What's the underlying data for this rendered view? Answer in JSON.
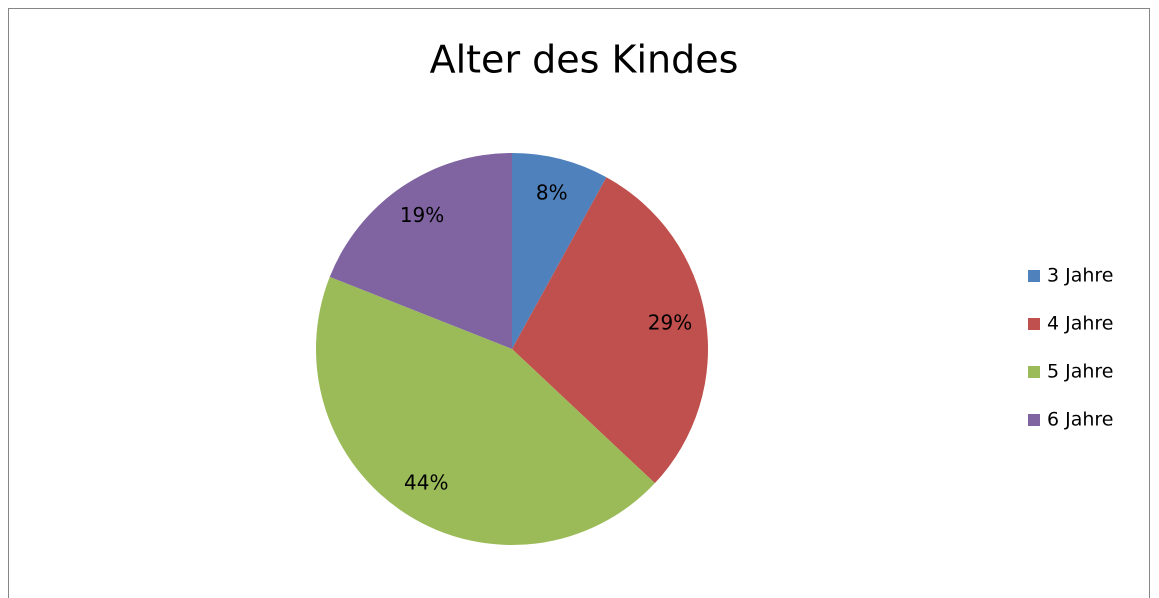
{
  "chart_data": {
    "type": "pie",
    "title": "Alter des Kindes",
    "categories": [
      "3 Jahre",
      "4 Jahre",
      "5 Jahre",
      "6 Jahre"
    ],
    "values": [
      8,
      29,
      44,
      19
    ],
    "value_labels": [
      "8%",
      "29%",
      "44%",
      "19%"
    ],
    "colors": [
      "#4f81bd",
      "#c0504d",
      "#9bbb59",
      "#8064a2"
    ],
    "legend": "right"
  }
}
